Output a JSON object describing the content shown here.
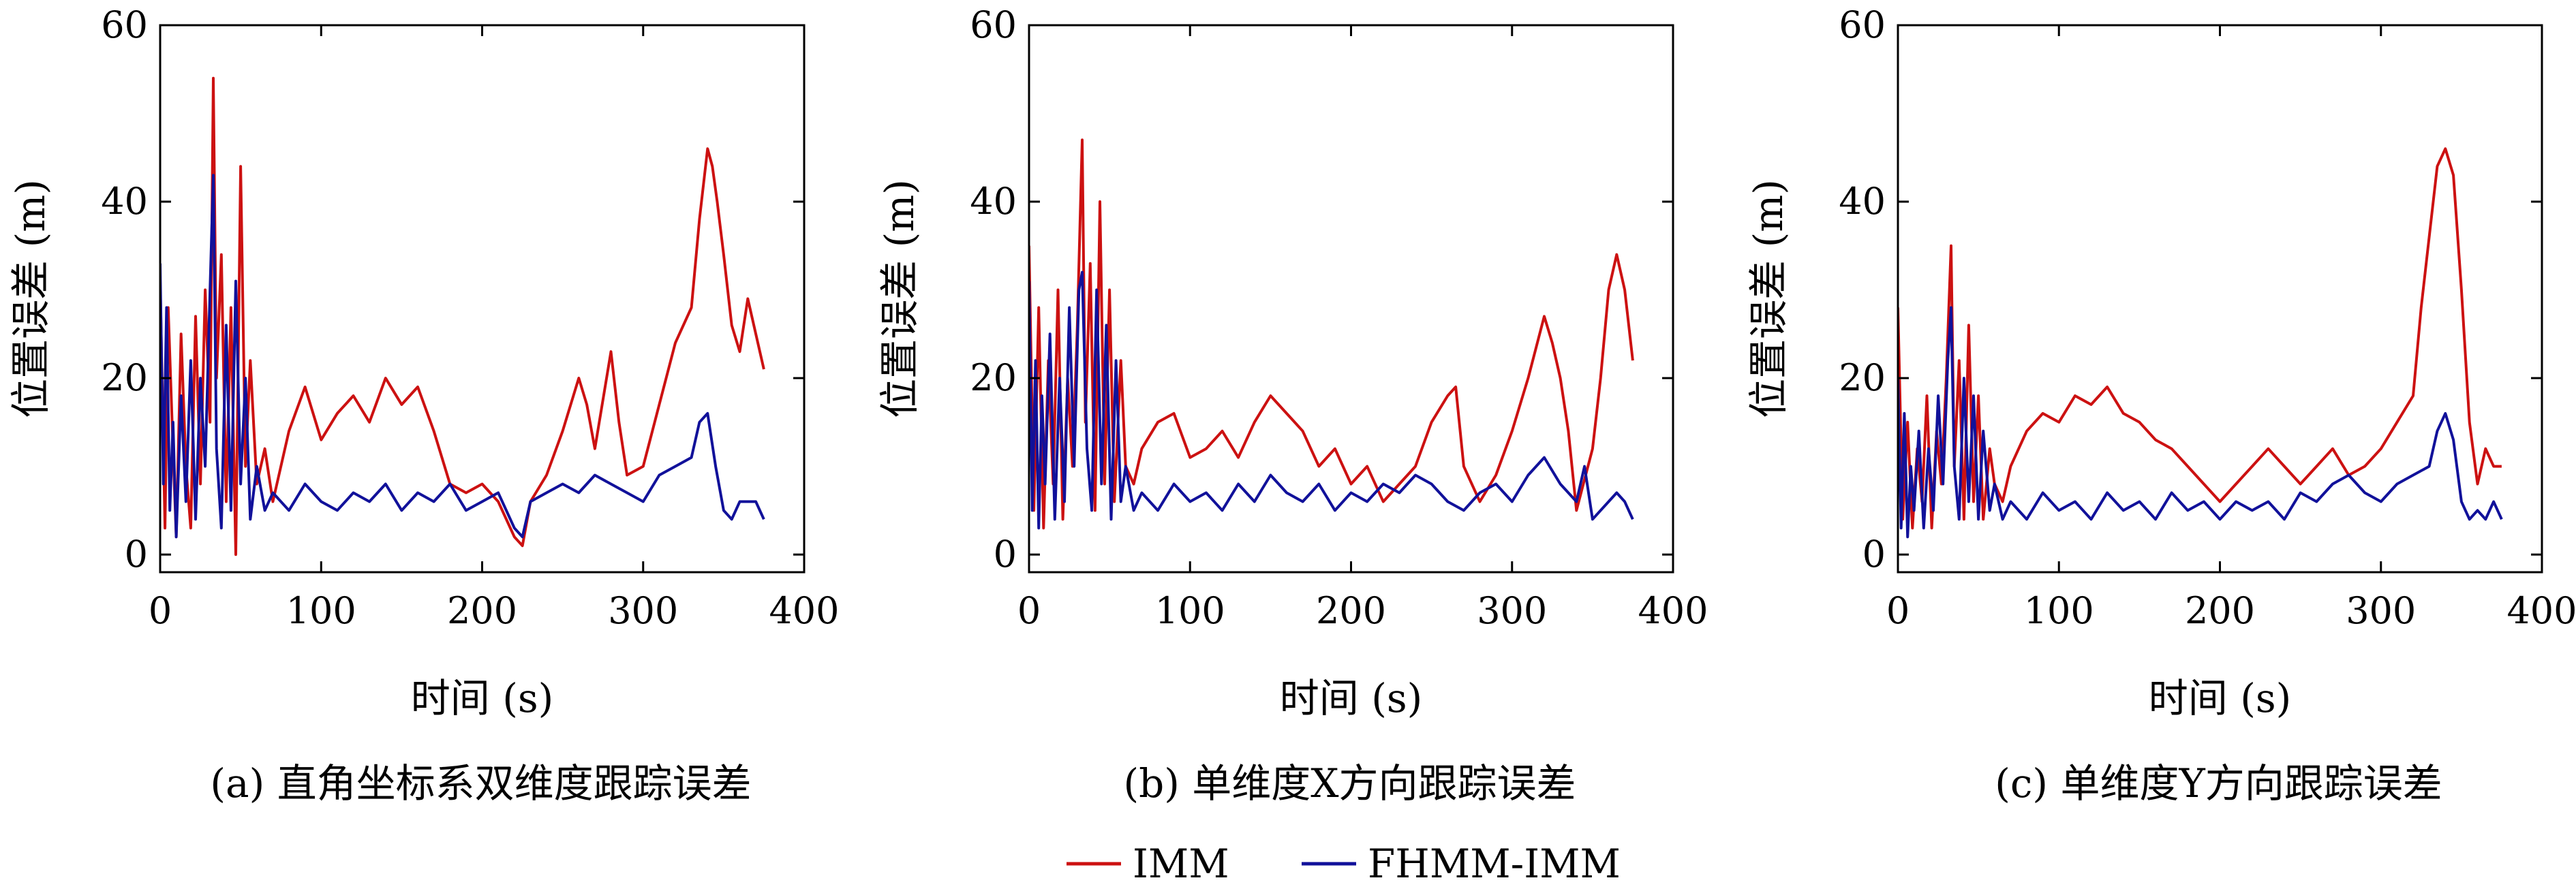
{
  "chart_data": [
    {
      "type": "line",
      "caption": "(a) 直角坐标系双维度跟踪误差",
      "xlabel": "时间 (s)",
      "ylabel": "位置误差 (m)",
      "xlim": [
        0,
        400
      ],
      "ylim": [
        -2,
        60
      ],
      "xticks": [
        0,
        100,
        200,
        300,
        400
      ],
      "yticks": [
        0,
        20,
        40,
        60
      ],
      "series": [
        {
          "name": "IMM",
          "x": [
            0,
            3,
            5,
            8,
            10,
            13,
            16,
            19,
            22,
            25,
            28,
            31,
            33,
            35,
            38,
            41,
            44,
            47,
            50,
            53,
            56,
            60,
            65,
            70,
            80,
            90,
            100,
            110,
            120,
            130,
            140,
            150,
            160,
            170,
            180,
            190,
            200,
            210,
            220,
            225,
            230,
            240,
            250,
            260,
            265,
            270,
            280,
            285,
            290,
            300,
            310,
            320,
            330,
            335,
            340,
            343,
            346,
            350,
            355,
            360,
            365,
            370,
            375
          ],
          "y": [
            31,
            3,
            28,
            12,
            2,
            25,
            10,
            3,
            27,
            8,
            30,
            15,
            54,
            20,
            34,
            6,
            28,
            0,
            44,
            10,
            22,
            8,
            12,
            6,
            14,
            19,
            13,
            16,
            18,
            15,
            20,
            17,
            19,
            14,
            8,
            7,
            8,
            6,
            2,
            1,
            6,
            9,
            14,
            20,
            17,
            12,
            23,
            15,
            9,
            10,
            17,
            24,
            28,
            38,
            46,
            44,
            40,
            34,
            26,
            23,
            29,
            25,
            21
          ]
        },
        {
          "name": "FHMM-IMM",
          "x": [
            0,
            2,
            4,
            6,
            8,
            10,
            13,
            16,
            19,
            22,
            25,
            28,
            31,
            33,
            35,
            38,
            41,
            44,
            47,
            50,
            53,
            56,
            60,
            65,
            70,
            80,
            90,
            100,
            110,
            120,
            130,
            140,
            150,
            160,
            170,
            180,
            190,
            200,
            210,
            220,
            225,
            230,
            240,
            250,
            260,
            270,
            280,
            290,
            300,
            310,
            320,
            330,
            335,
            340,
            345,
            350,
            355,
            360,
            365,
            370,
            375
          ],
          "y": [
            33,
            8,
            28,
            5,
            15,
            2,
            18,
            6,
            22,
            4,
            20,
            10,
            30,
            43,
            12,
            3,
            26,
            5,
            31,
            8,
            20,
            4,
            10,
            5,
            7,
            5,
            8,
            6,
            5,
            7,
            6,
            8,
            5,
            7,
            6,
            8,
            5,
            6,
            7,
            3,
            2,
            6,
            7,
            8,
            7,
            9,
            8,
            7,
            6,
            9,
            10,
            11,
            15,
            16,
            10,
            5,
            4,
            6,
            6,
            6,
            4
          ]
        }
      ]
    },
    {
      "type": "line",
      "caption": "(b) 单维度X方向跟踪误差",
      "xlabel": "时间 (s)",
      "ylabel": "位置误差 (m)",
      "xlim": [
        0,
        400
      ],
      "ylim": [
        -2,
        60
      ],
      "xticks": [
        0,
        100,
        200,
        300,
        400
      ],
      "yticks": [
        0,
        20,
        40,
        60
      ],
      "series": [
        {
          "name": "IMM",
          "x": [
            0,
            3,
            6,
            9,
            12,
            15,
            18,
            21,
            24,
            27,
            30,
            33,
            35,
            38,
            41,
            44,
            47,
            50,
            53,
            57,
            60,
            65,
            70,
            80,
            90,
            100,
            110,
            120,
            130,
            140,
            150,
            160,
            170,
            180,
            190,
            200,
            210,
            220,
            230,
            240,
            250,
            260,
            265,
            270,
            280,
            290,
            300,
            310,
            320,
            325,
            330,
            335,
            340,
            350,
            355,
            360,
            365,
            370,
            375
          ],
          "y": [
            35,
            5,
            28,
            3,
            22,
            8,
            30,
            4,
            20,
            10,
            26,
            47,
            15,
            33,
            5,
            40,
            8,
            30,
            6,
            22,
            10,
            8,
            12,
            15,
            16,
            11,
            12,
            14,
            11,
            15,
            18,
            16,
            14,
            10,
            12,
            8,
            10,
            6,
            8,
            10,
            15,
            18,
            19,
            10,
            6,
            9,
            14,
            20,
            27,
            24,
            20,
            14,
            5,
            12,
            20,
            30,
            34,
            30,
            22
          ]
        },
        {
          "name": "FHMM-IMM",
          "x": [
            0,
            2,
            4,
            6,
            8,
            10,
            13,
            16,
            19,
            22,
            25,
            28,
            31,
            33,
            36,
            39,
            42,
            45,
            48,
            51,
            54,
            57,
            60,
            65,
            70,
            80,
            90,
            100,
            110,
            120,
            130,
            140,
            150,
            160,
            170,
            180,
            190,
            200,
            210,
            220,
            230,
            240,
            250,
            260,
            270,
            280,
            290,
            300,
            310,
            320,
            330,
            340,
            345,
            350,
            355,
            360,
            365,
            370,
            375
          ],
          "y": [
            31,
            5,
            22,
            3,
            18,
            8,
            25,
            4,
            20,
            6,
            28,
            10,
            30,
            32,
            12,
            5,
            30,
            8,
            26,
            4,
            22,
            6,
            10,
            5,
            7,
            5,
            8,
            6,
            7,
            5,
            8,
            6,
            9,
            7,
            6,
            8,
            5,
            7,
            6,
            8,
            7,
            9,
            8,
            6,
            5,
            7,
            8,
            6,
            9,
            11,
            8,
            6,
            10,
            4,
            5,
            6,
            7,
            6,
            4
          ]
        }
      ]
    },
    {
      "type": "line",
      "caption": "(c) 单维度Y方向跟踪误差",
      "xlabel": "时间 (s)",
      "ylabel": "位置误差 (m)",
      "xlim": [
        0,
        400
      ],
      "ylim": [
        -2,
        60
      ],
      "xticks": [
        0,
        100,
        200,
        300,
        400
      ],
      "yticks": [
        0,
        20,
        40,
        60
      ],
      "series": [
        {
          "name": "IMM",
          "x": [
            0,
            3,
            6,
            9,
            12,
            15,
            18,
            21,
            24,
            27,
            30,
            33,
            35,
            38,
            41,
            44,
            47,
            50,
            53,
            57,
            60,
            65,
            70,
            80,
            90,
            100,
            110,
            120,
            130,
            140,
            150,
            160,
            170,
            180,
            190,
            200,
            210,
            220,
            230,
            240,
            250,
            260,
            270,
            280,
            290,
            300,
            310,
            320,
            325,
            330,
            335,
            340,
            345,
            350,
            355,
            360,
            365,
            370,
            375
          ],
          "y": [
            28,
            4,
            15,
            3,
            12,
            6,
            18,
            3,
            14,
            8,
            20,
            35,
            10,
            22,
            4,
            26,
            6,
            18,
            4,
            12,
            8,
            6,
            10,
            14,
            16,
            15,
            18,
            17,
            19,
            16,
            15,
            13,
            12,
            10,
            8,
            6,
            8,
            10,
            12,
            10,
            8,
            10,
            12,
            9,
            10,
            12,
            15,
            18,
            28,
            36,
            44,
            46,
            43,
            30,
            15,
            8,
            12,
            10,
            10
          ]
        },
        {
          "name": "FHMM-IMM",
          "x": [
            0,
            2,
            4,
            6,
            8,
            10,
            13,
            16,
            19,
            22,
            25,
            28,
            31,
            33,
            35,
            38,
            41,
            44,
            47,
            50,
            53,
            57,
            60,
            65,
            70,
            80,
            90,
            100,
            110,
            120,
            130,
            140,
            150,
            160,
            170,
            180,
            190,
            200,
            210,
            220,
            230,
            240,
            250,
            260,
            270,
            280,
            290,
            300,
            310,
            320,
            330,
            335,
            340,
            345,
            350,
            355,
            360,
            365,
            370,
            375
          ],
          "y": [
            20,
            3,
            16,
            2,
            10,
            5,
            14,
            3,
            12,
            5,
            18,
            8,
            22,
            28,
            10,
            4,
            20,
            6,
            18,
            4,
            14,
            5,
            8,
            4,
            6,
            4,
            7,
            5,
            6,
            4,
            7,
            5,
            6,
            4,
            7,
            5,
            6,
            4,
            6,
            5,
            6,
            4,
            7,
            6,
            8,
            9,
            7,
            6,
            8,
            9,
            10,
            14,
            16,
            13,
            6,
            4,
            5,
            4,
            6,
            4
          ]
        }
      ]
    }
  ],
  "legend": {
    "position": "bottom-center",
    "entries": [
      {
        "label": "IMM",
        "color": "#cc1111"
      },
      {
        "label": "FHMM-IMM",
        "color": "#11119a"
      }
    ]
  },
  "colors": {
    "imm": "#cc1111",
    "fhmm": "#11119a"
  }
}
